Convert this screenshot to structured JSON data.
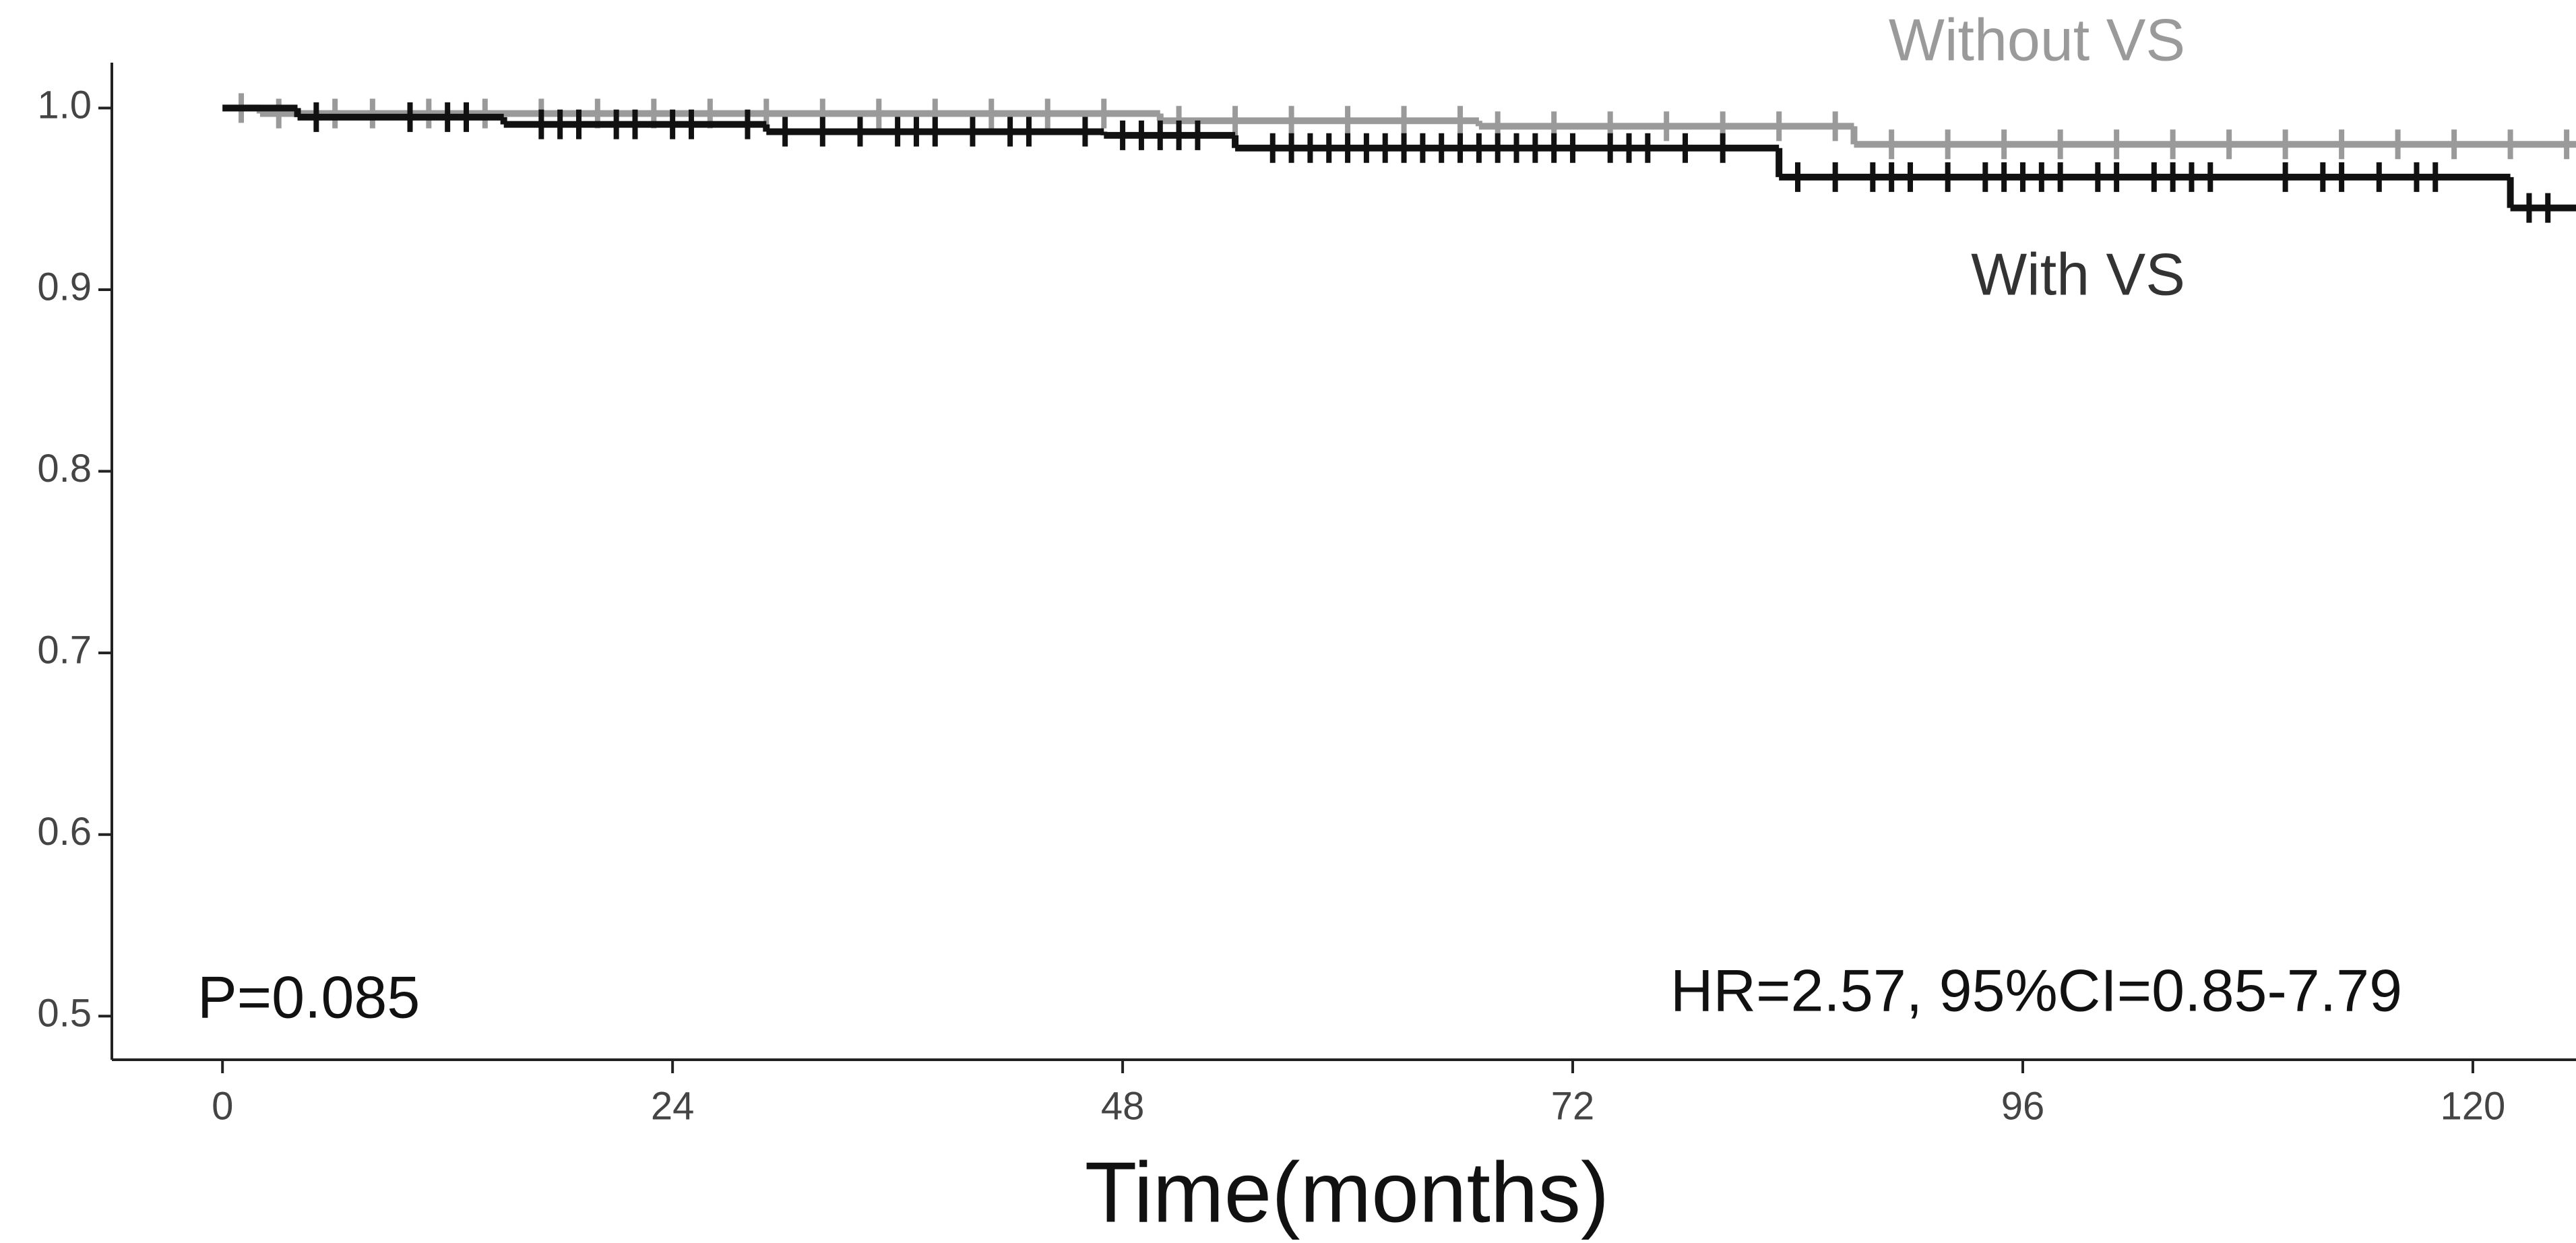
{
  "chart_data": {
    "type": "step",
    "x_label": "Time(months)",
    "annotations": [
      "Without VS",
      "With VS",
      "P=0.085",
      "HR=2.57, 95%CI=0.85-7.79"
    ],
    "xlim": [
      -5.9,
      125.5
    ],
    "xticks": [
      0,
      24,
      48,
      72,
      96,
      120
    ],
    "ylim": [
      0.476,
      1.025
    ],
    "yticks": [
      0.5,
      0.6,
      0.7,
      0.8,
      0.9,
      {
        "value": 1,
        "label": "1.0"
      }
    ],
    "series": [
      {
        "name": "Without VS",
        "color": "#9a9a9a",
        "x": [
          0,
          2,
          50,
          67,
          87
        ],
        "values": [
          1.0,
          0.997,
          0.993,
          0.99,
          0.98
        ],
        "censor_x": [
          1,
          3,
          6,
          8,
          11,
          14,
          17,
          20,
          23,
          26,
          29,
          32,
          35,
          38,
          41,
          44,
          47,
          51,
          54,
          57,
          60,
          63,
          66,
          68,
          71,
          74,
          77,
          80,
          83,
          86,
          89,
          92,
          95,
          98,
          101,
          104,
          107,
          110,
          113,
          116,
          119,
          122,
          125
        ]
      },
      {
        "name": "With VS",
        "color": "#111111",
        "x": [
          0,
          4,
          15,
          29,
          47,
          54,
          83,
          122
        ],
        "values": [
          1.0,
          0.995,
          0.991,
          0.987,
          0.985,
          0.978,
          0.962,
          0.945
        ],
        "censor_x": [
          5,
          10,
          12,
          13,
          17,
          18,
          19,
          21,
          22,
          24,
          25,
          28,
          30,
          32,
          34,
          36,
          37,
          38,
          40,
          42,
          43,
          46,
          48,
          49,
          50,
          51,
          52,
          56,
          57,
          58,
          59,
          60,
          61,
          62,
          63,
          64,
          65,
          66,
          67,
          68,
          69,
          70,
          71,
          72,
          74,
          75,
          76,
          78,
          80,
          84,
          86,
          88,
          89,
          90,
          92,
          94,
          95,
          96,
          97,
          98,
          100,
          101,
          103,
          104,
          105,
          106,
          110,
          112,
          113,
          115,
          117,
          118,
          123,
          124
        ]
      }
    ]
  }
}
